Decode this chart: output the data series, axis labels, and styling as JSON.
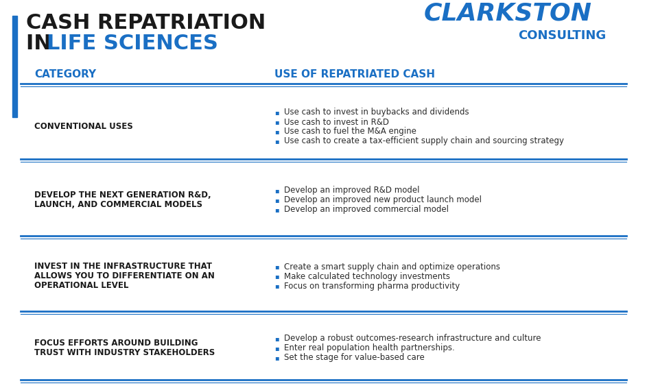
{
  "bg_color": "#ffffff",
  "title_line1": "CASH REPATRIATION",
  "title_line2_black": "IN ",
  "title_line2_blue": "LIFE SCIENCES",
  "title_black_color": "#1a1a1a",
  "title_blue_color": "#1a6fc4",
  "accent_bar_color": "#1a6fc4",
  "header_color": "#1a6fc4",
  "divider_color": "#1a6fc4",
  "col1_header": "CATEGORY",
  "col2_header": "USE OF REPATRIATED CASH",
  "col_split": 0.42,
  "clarkston_text": "CLARKSTON",
  "consulting_text": "CONSULTING",
  "rows": [
    {
      "category": "CONVENTIONAL USES",
      "bullets": [
        "Use cash to invest in buybacks and dividends",
        "Use cash to invest in R&D",
        "Use cash to fuel the M&A engine",
        "Use cash to create a tax-efficient supply chain and sourcing strategy"
      ]
    },
    {
      "category": "DEVELOP THE NEXT GENERATION R&D,\nLAUNCH, AND COMMERCIAL MODELS",
      "bullets": [
        "Develop an improved R&D model",
        "Develop an improved new product launch model",
        "Develop an improved commercial model"
      ]
    },
    {
      "category": "INVEST IN THE INFRASTRUCTURE THAT\nALLOWS YOU TO DIFFERENTIATE ON AN\nOPERATIONAL LEVEL",
      "bullets": [
        "Create a smart supply chain and optimize operations",
        "Make calculated technology investments",
        "Focus on transforming pharma productivity"
      ]
    },
    {
      "category": "FOCUS EFFORTS AROUND BUILDING\nTRUST WITH INDUSTRY STAKEHOLDERS",
      "bullets": [
        "Develop a robust outcomes-research infrastructure and culture",
        "Enter real population health partnerships.",
        "Set the stage for value-based care"
      ]
    }
  ]
}
